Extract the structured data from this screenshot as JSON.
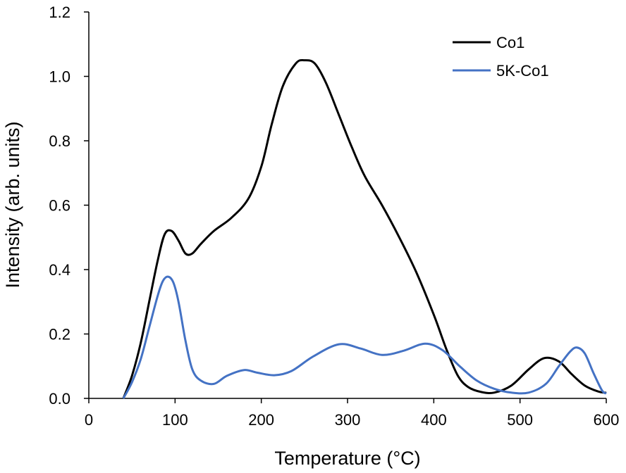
{
  "chart_data": {
    "type": "line",
    "title": "",
    "xlabel": "Temperature (°C)",
    "ylabel": "Intensity (arb. units)",
    "xlim": [
      0,
      600
    ],
    "ylim": [
      0,
      1.2
    ],
    "x_ticks": [
      "0",
      "100",
      "200",
      "300",
      "400",
      "500",
      "600"
    ],
    "y_ticks": [
      "0.0",
      "0.2",
      "0.4",
      "0.6",
      "0.8",
      "1.0",
      "1.2"
    ],
    "grid": false,
    "legend": {
      "position": "top-right"
    },
    "series": [
      {
        "name": "Co1",
        "color": "#000000",
        "x": [
          40,
          50,
          60,
          70,
          80,
          88,
          96,
          104,
          112,
          120,
          130,
          145,
          165,
          185,
          200,
          212,
          225,
          240,
          250,
          262,
          275,
          290,
          305,
          320,
          340,
          360,
          380,
          400,
          415,
          428,
          440,
          455,
          470,
          490,
          510,
          528,
          545,
          560,
          575,
          590,
          600
        ],
        "y": [
          0.0,
          0.07,
          0.17,
          0.3,
          0.43,
          0.51,
          0.52,
          0.49,
          0.45,
          0.45,
          0.48,
          0.52,
          0.56,
          0.62,
          0.72,
          0.85,
          0.97,
          1.04,
          1.05,
          1.04,
          0.98,
          0.88,
          0.78,
          0.69,
          0.6,
          0.5,
          0.39,
          0.26,
          0.15,
          0.07,
          0.035,
          0.02,
          0.018,
          0.04,
          0.09,
          0.125,
          0.115,
          0.075,
          0.04,
          0.022,
          0.017
        ]
      },
      {
        "name": "5K-Co1",
        "color": "#4472c4",
        "x": [
          40,
          50,
          60,
          70,
          80,
          86,
          92,
          98,
          104,
          112,
          120,
          130,
          145,
          160,
          180,
          195,
          215,
          235,
          260,
          290,
          315,
          340,
          365,
          390,
          410,
          430,
          450,
          470,
          490,
          510,
          530,
          545,
          558,
          566,
          575,
          585,
          595,
          600
        ],
        "y": [
          0.0,
          0.05,
          0.12,
          0.22,
          0.32,
          0.365,
          0.378,
          0.36,
          0.3,
          0.18,
          0.09,
          0.055,
          0.045,
          0.07,
          0.088,
          0.08,
          0.072,
          0.085,
          0.13,
          0.168,
          0.155,
          0.135,
          0.148,
          0.17,
          0.15,
          0.1,
          0.055,
          0.03,
          0.018,
          0.018,
          0.045,
          0.1,
          0.145,
          0.158,
          0.14,
          0.08,
          0.025,
          0.015
        ]
      }
    ]
  }
}
